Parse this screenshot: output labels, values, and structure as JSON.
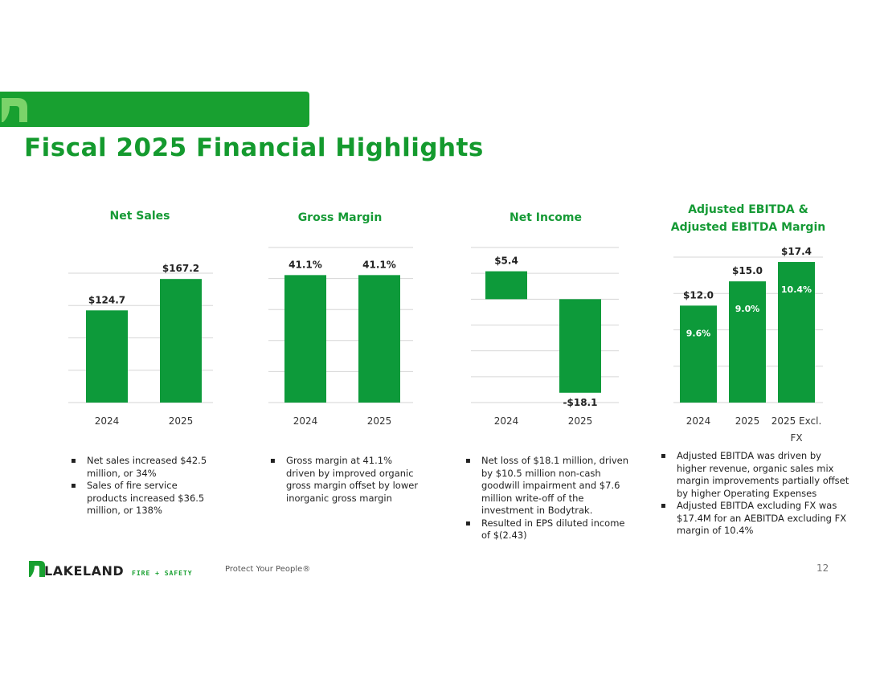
{
  "slide": {
    "title": "Fiscal 2025 Financial Highlights",
    "tagline": "Protect Your People®",
    "page_number": "12",
    "brand_color": "#149a2e",
    "logo_text": "LAKELAND",
    "logo_sub": "FIRE + SAFETY"
  },
  "chart_data": [
    {
      "type": "bar",
      "title": "Net Sales",
      "categories": [
        "2024",
        "2025"
      ],
      "values": [
        124.7,
        167.2
      ],
      "value_labels": [
        "$124.7",
        "$167.2"
      ],
      "ylim": [
        0,
        175
      ],
      "grid": true,
      "color": "#0d9a3a"
    },
    {
      "type": "bar",
      "title": "Gross Margin",
      "categories": [
        "2024",
        "2025"
      ],
      "values": [
        41.1,
        41.1
      ],
      "value_labels": [
        "41.1%",
        "41.1%"
      ],
      "ylim": [
        0,
        50
      ],
      "grid": true,
      "color": "#0d9a3a"
    },
    {
      "type": "bar",
      "title": "Net Income",
      "categories": [
        "2024",
        "2025"
      ],
      "values": [
        5.4,
        -18.1
      ],
      "value_labels": [
        "$5.4",
        "-$18.1"
      ],
      "ylim": [
        -20,
        10
      ],
      "grid": true,
      "color": "#0d9a3a"
    },
    {
      "type": "bar",
      "title": "Adjusted EBITDA & Adjusted EBITDA Margin",
      "title_lines": [
        "Adjusted EBITDA &",
        "Adjusted EBITDA Margin"
      ],
      "categories": [
        "2024",
        "2025",
        "2025 Excl. FX"
      ],
      "category_lines": [
        [
          "2024"
        ],
        [
          "2025"
        ],
        [
          "2025 Excl.",
          "FX"
        ]
      ],
      "values": [
        12.0,
        15.0,
        17.4
      ],
      "value_labels": [
        "$12.0",
        "$15.0",
        "$17.4"
      ],
      "margins": [
        9.6,
        9.0,
        10.4
      ],
      "margin_labels": [
        "9.6%",
        "9.0%",
        "10.4%"
      ],
      "ylim": [
        0,
        18
      ],
      "grid": true,
      "color": "#0d9a3a"
    }
  ],
  "bullets": [
    [
      "Net sales increased $42.5 million, or 34%",
      "Sales of fire service products increased $36.5 million, or 138%"
    ],
    [
      "Gross margin at 41.1% driven by improved organic gross margin offset by lower inorganic gross margin"
    ],
    [
      "Net loss of $18.1 million, driven by $10.5 million non-cash goodwill impairment and $7.6 million write-off of the investment in Bodytrak.",
      "Resulted in EPS diluted income of $(2.43)"
    ],
    [
      "Adjusted EBITDA was driven by higher revenue, organic sales mix margin improvements partially offset by higher Operating Expenses",
      "Adjusted EBITDA excluding FX was $17.4M for an AEBITDA excluding FX margin of 10.4%"
    ]
  ]
}
